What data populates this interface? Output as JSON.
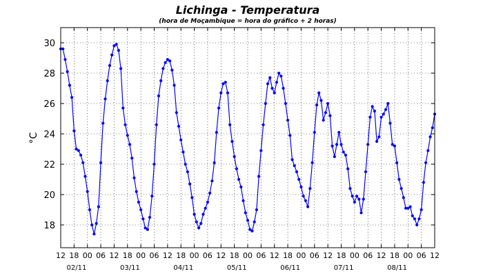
{
  "chart_data": {
    "type": "line",
    "title": "Lichinga - Temperatura",
    "subtitle": "(hora de Moçambique = hora do gráfico + 2 horas)",
    "xlabel": "",
    "ylabel": "°C",
    "ylim": [
      16.5,
      31
    ],
    "xlim_hours": [
      0,
      168
    ],
    "yticks": [
      18,
      20,
      22,
      24,
      26,
      28,
      30
    ],
    "xtick_labels": [
      "12",
      "18",
      "00",
      "06",
      "12",
      "18",
      "00",
      "06",
      "12",
      "18",
      "00",
      "06",
      "12",
      "18",
      "00",
      "06",
      "12",
      "18",
      "00",
      "06",
      "12",
      "18",
      "00",
      "06",
      "12",
      "18",
      "00",
      "06",
      "12"
    ],
    "date_labels": [
      "02/11",
      "03/11",
      "04/11",
      "05/11",
      "06/11",
      "07/11",
      "08/11"
    ],
    "grid": true,
    "line_color": "#0000ff",
    "series": [
      {
        "x": [
          0,
          1,
          2,
          3,
          4,
          5,
          6,
          7,
          8,
          9,
          10,
          11,
          12,
          13,
          14,
          15,
          16,
          17,
          18,
          19,
          20,
          21,
          22,
          23,
          24,
          25,
          26,
          27,
          28,
          29,
          30,
          31,
          32,
          33,
          34,
          35,
          36,
          37,
          38,
          39,
          40,
          41,
          42,
          43,
          44,
          45,
          46,
          47,
          48,
          49,
          50,
          51,
          52,
          53,
          54,
          55,
          56,
          57,
          58,
          59,
          60,
          61,
          62,
          63,
          64,
          65,
          66,
          67,
          68,
          69,
          70,
          71,
          72,
          73,
          74,
          75,
          76,
          77,
          78,
          79,
          80,
          81,
          82,
          83,
          84,
          85,
          86,
          87,
          88,
          89,
          90,
          91,
          92,
          93,
          94,
          95,
          96,
          97,
          98,
          99,
          100,
          101,
          102,
          103,
          104,
          105,
          106,
          107,
          108,
          109,
          110,
          111,
          112,
          113,
          114,
          115,
          116,
          117,
          118,
          119,
          120,
          121,
          122,
          123,
          124,
          125,
          126,
          127,
          128,
          129,
          130,
          131,
          132,
          133,
          134,
          135,
          136,
          137,
          138,
          139,
          140,
          141,
          142,
          143,
          144,
          145,
          146,
          147,
          148,
          149,
          150,
          151,
          152,
          153,
          154,
          155,
          156,
          157,
          158,
          159,
          160,
          161,
          162,
          163,
          164,
          165,
          166,
          167,
          168
        ],
        "values": [
          29.6,
          29.6,
          28.9,
          28.1,
          27.2,
          26.4,
          24.2,
          23.0,
          22.9,
          22.6,
          22.1,
          21.2,
          20.2,
          19.0,
          18.0,
          17.4,
          18.1,
          19.2,
          22.1,
          24.7,
          26.3,
          27.5,
          28.5,
          29.2,
          29.8,
          29.9,
          29.5,
          28.3,
          25.7,
          24.6,
          23.9,
          23.3,
          22.4,
          21.1,
          20.2,
          19.5,
          19.0,
          18.4,
          17.8,
          17.7,
          18.5,
          19.9,
          22.0,
          24.6,
          26.5,
          27.5,
          28.3,
          28.7,
          28.9,
          28.8,
          28.2,
          27.2,
          25.4,
          24.5,
          23.6,
          22.8,
          22.0,
          21.5,
          20.7,
          19.8,
          18.7,
          18.2,
          17.8,
          18.1,
          18.7,
          19.1,
          19.5,
          20.1,
          20.9,
          22.1,
          24.1,
          25.7,
          26.7,
          27.3,
          27.4,
          26.7,
          24.6,
          23.5,
          22.5,
          21.7,
          21.0,
          20.5,
          19.6,
          18.8,
          18.3,
          17.7,
          17.6,
          18.2,
          19.0,
          21.2,
          22.9,
          24.6,
          26.0,
          27.3,
          27.7,
          27.0,
          26.7,
          27.4,
          28.0,
          27.8,
          27.0,
          26.0,
          24.9,
          23.9,
          22.3,
          21.9,
          21.5,
          21.0,
          20.5,
          19.9,
          19.6,
          19.2,
          20.4,
          22.1,
          24.1,
          25.9,
          26.7,
          26.2,
          24.9,
          25.4,
          26.0,
          25.2,
          23.2,
          22.5,
          23.3,
          24.1,
          23.3,
          22.8,
          22.6,
          21.7,
          20.4,
          19.9,
          19.5,
          19.9,
          19.7,
          18.8,
          19.7,
          21.5,
          23.3,
          25.1,
          25.8,
          25.5,
          23.5,
          23.8,
          25.1,
          25.3,
          25.6,
          26.0,
          24.7,
          23.3,
          23.2,
          22.1,
          21.0,
          20.4,
          19.8,
          19.1,
          19.1,
          19.2,
          18.6,
          18.4,
          18.0,
          18.4,
          19.0,
          20.8,
          22.1,
          22.9,
          23.8,
          24.4,
          25.3
        ]
      }
    ]
  }
}
